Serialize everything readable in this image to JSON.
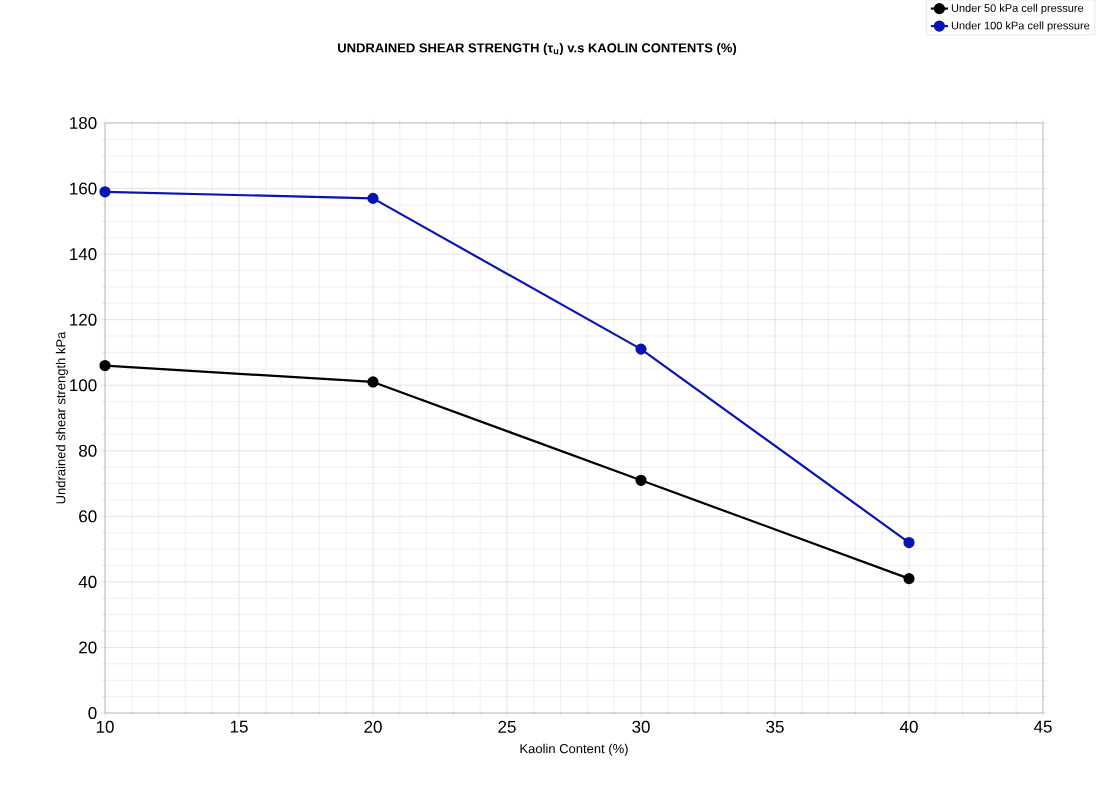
{
  "chart_data": {
    "type": "line",
    "title": "UNDRAINED SHEAR STRENGTH (τ$_{u}$) v.s KAOLIN CONTENTS (%)",
    "xlabel": "Kaolin Content (%)",
    "ylabel": "Undrained shear strength      kPa",
    "x": [
      10,
      20,
      30,
      40
    ],
    "series": [
      {
        "name": "Under 50 kPa cell pressure",
        "color": "#000000",
        "values": [
          106,
          101,
          71,
          41
        ]
      },
      {
        "name": "Under 100 kPa cell pressure",
        "color": "#0a14b4",
        "values": [
          159,
          157,
          111,
          52
        ]
      }
    ],
    "xlim": [
      10,
      45
    ],
    "xticks": [
      10,
      15,
      20,
      25,
      30,
      35,
      40,
      45
    ],
    "ylim": [
      0,
      180
    ],
    "yticks": [
      0,
      20,
      40,
      60,
      80,
      100,
      120,
      140,
      160,
      180
    ],
    "grid": true,
    "legend": "top right",
    "marker": "circle",
    "line_style": "solid"
  }
}
